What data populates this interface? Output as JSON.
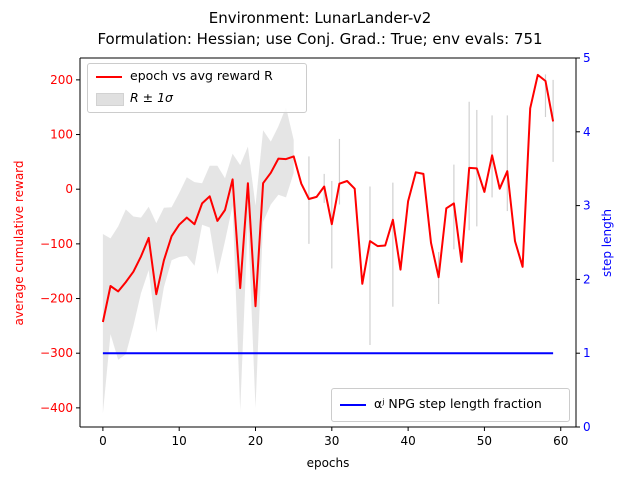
{
  "title_line1": "Environment: LunarLander-v2",
  "title_line2": "Formulation: Hessian; use Conj. Grad.: True; env evals: 751",
  "colors": {
    "reward": "#ff0000",
    "band": "#d3d3d3",
    "step": "#0000ff",
    "axes": "#000000"
  },
  "legend_left": {
    "line_label": "epoch vs avg reward R",
    "band_label": "R ± 1σ"
  },
  "legend_right": {
    "line_label": "αʲ NPG step length fraction"
  },
  "chart_data": {
    "type": "line",
    "xlabel": "epochs",
    "ylabel_left": "average cumulative reward",
    "ylabel_right": "step length",
    "xlim": [
      -3,
      62
    ],
    "ylim_left": [
      -435,
      240
    ],
    "ylim_right": [
      0,
      5
    ],
    "x_ticks": [
      0,
      10,
      20,
      30,
      40,
      50,
      60
    ],
    "y_ticks_left": [
      -400,
      -300,
      -200,
      -100,
      0,
      100,
      200
    ],
    "y_ticks_right": [
      0,
      1,
      2,
      3,
      4,
      5
    ],
    "grid": false,
    "legend_positions": {
      "reward": "upper-left",
      "step": "lower-right"
    },
    "series": [
      {
        "name": "epoch vs avg reward R",
        "axis": "left",
        "x": [
          0,
          1,
          2,
          3,
          4,
          5,
          6,
          7,
          8,
          9,
          10,
          11,
          12,
          13,
          14,
          15,
          16,
          17,
          18,
          19,
          20,
          21,
          22,
          23,
          24,
          25,
          26,
          27,
          28,
          29,
          30,
          31,
          32,
          33,
          34,
          35,
          36,
          37,
          38,
          39,
          40,
          41,
          42,
          43,
          44,
          45,
          46,
          47,
          48,
          49,
          50,
          51,
          52,
          53,
          54,
          55,
          56,
          57,
          58,
          59
        ],
        "values": [
          -243,
          -177,
          -187,
          -170,
          -151,
          -123,
          -89,
          -192,
          -130,
          -86,
          -65,
          -52,
          -64,
          -26,
          -13,
          -58,
          -38,
          18,
          -181,
          11,
          -214,
          11,
          30,
          56,
          55,
          60,
          10,
          -18,
          -14,
          5,
          -64,
          10,
          15,
          1,
          -173,
          -95,
          -104,
          -103,
          -56,
          -147,
          -22,
          31,
          28,
          -98,
          -161,
          -35,
          -26,
          -133,
          39,
          38,
          -5,
          62,
          1,
          33,
          -95,
          -142,
          148,
          209,
          198,
          124
        ],
        "band": {
          "name": "R ± 1σ",
          "upper": [
            -82,
            -90,
            -68,
            -37,
            -50,
            -52,
            -32,
            -62,
            -34,
            -33,
            -7,
            22,
            13,
            11,
            43,
            43,
            20,
            65,
            44,
            78,
            -30,
            108,
            87,
            115,
            150,
            90,
            null,
            null,
            null,
            null,
            null,
            null,
            null,
            null,
            null,
            null,
            null,
            null,
            null,
            null,
            null,
            null,
            null,
            null,
            null,
            null,
            null,
            null,
            null,
            null,
            null,
            null,
            null,
            null,
            null,
            null,
            null,
            null,
            null,
            null
          ],
          "lower": [
            -410,
            -265,
            -312,
            -302,
            -250,
            -190,
            -148,
            -262,
            -179,
            -130,
            -124,
            -122,
            -140,
            -65,
            -70,
            -156,
            -95,
            -30,
            -405,
            -55,
            -400,
            -60,
            -28,
            -10,
            -15,
            30,
            null,
            null,
            null,
            null,
            null,
            null,
            null,
            null,
            null,
            null,
            null,
            null,
            null,
            null,
            null,
            null,
            null,
            null,
            null,
            null,
            null,
            null,
            null,
            null,
            null,
            null,
            null,
            null,
            null,
            null,
            null,
            null,
            null,
            null
          ]
        }
      },
      {
        "name": "αʲ NPG step length fraction",
        "axis": "right",
        "x": [
          0,
          59
        ],
        "values": [
          1,
          1
        ]
      }
    ],
    "error_whiskers": [
      {
        "x": 27,
        "low": -100,
        "high": 60
      },
      {
        "x": 29,
        "low": -25,
        "high": 28
      },
      {
        "x": 30,
        "low": -145,
        "high": 15
      },
      {
        "x": 31,
        "low": -28,
        "high": 92
      },
      {
        "x": 35,
        "low": -285,
        "high": 5
      },
      {
        "x": 38,
        "low": -215,
        "high": 12
      },
      {
        "x": 44,
        "low": -210,
        "high": -115
      },
      {
        "x": 46,
        "low": -110,
        "high": 45
      },
      {
        "x": 48,
        "low": -75,
        "high": 160
      },
      {
        "x": 49,
        "low": -68,
        "high": 145
      },
      {
        "x": 51,
        "low": -15,
        "high": 135
      },
      {
        "x": 53,
        "low": -40,
        "high": 135
      },
      {
        "x": 58,
        "low": 132,
        "high": 210
      },
      {
        "x": 59,
        "low": 50,
        "high": 200
      }
    ]
  }
}
